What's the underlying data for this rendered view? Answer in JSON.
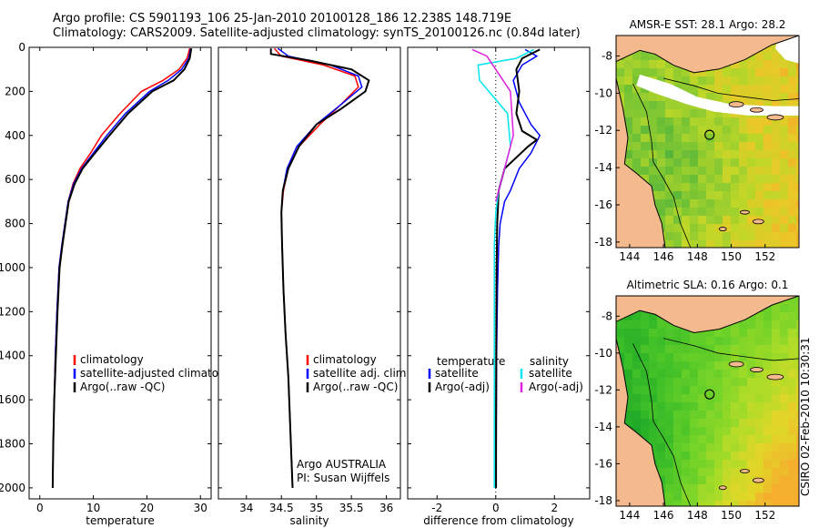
{
  "header": {
    "line1": "Argo profile: CS 5901193_106 25-Jan-2010 20100128_186 12.238S 148.719E",
    "line2": "Climatology: CARS2009. Satellite-adjusted climatology: synTS_20100126.nc (0.84d later)"
  },
  "stamp": "CSIRO 02-Feb-2010 10:30:31",
  "colors": {
    "climatology": "#ff0000",
    "satellite": "#0000ff",
    "argo": "#000000",
    "salinity_satellite": "#00e5ee",
    "salinity_argo": "#e020e0",
    "land": "#f4b98c"
  },
  "chart_data": [
    {
      "type": "line",
      "id": "temperature",
      "xlabel": "temperature",
      "xlim": [
        -2,
        32
      ],
      "ylim": [
        2050,
        0
      ],
      "xticks": [
        0,
        10,
        20,
        30
      ],
      "yticks": [
        0,
        200,
        400,
        600,
        800,
        1000,
        1200,
        1400,
        1600,
        1800,
        2000
      ],
      "legend": [
        "climatology",
        "satellite-adjusted climatology",
        "Argo(..raw -QC)"
      ],
      "series": [
        {
          "name": "climatology",
          "color": "#ff0000",
          "x": [
            28.0,
            27.5,
            26.0,
            23.0,
            19.0,
            15.0,
            11.5,
            9.5,
            7.5,
            6.2,
            5.3,
            4.7,
            4.1,
            3.6,
            3.2,
            2.9,
            2.7,
            2.5,
            2.4
          ],
          "y": [
            5,
            50,
            100,
            150,
            200,
            300,
            400,
            480,
            550,
            620,
            700,
            800,
            900,
            1000,
            1200,
            1400,
            1600,
            1800,
            2000
          ]
        },
        {
          "name": "satellite-adjusted climatology",
          "color": "#0000ff",
          "x": [
            28.2,
            27.8,
            26.5,
            24.0,
            20.5,
            16.0,
            12.5,
            10.0,
            7.8,
            6.3,
            5.3,
            4.7,
            4.1,
            3.6,
            3.2,
            2.9,
            2.7,
            2.5,
            2.4
          ],
          "y": [
            5,
            50,
            100,
            150,
            200,
            300,
            400,
            480,
            550,
            620,
            700,
            800,
            900,
            1000,
            1200,
            1400,
            1600,
            1800,
            2000
          ]
        },
        {
          "name": "Argo(..raw -QC)",
          "color": "#000000",
          "x": [
            28.3,
            28.0,
            27.0,
            25.0,
            21.0,
            16.5,
            13.0,
            10.3,
            8.0,
            6.5,
            5.4,
            4.8,
            4.2,
            3.7,
            3.3,
            3.0,
            2.7,
            2.5,
            2.4
          ],
          "y": [
            5,
            50,
            100,
            150,
            200,
            300,
            400,
            480,
            550,
            620,
            700,
            800,
            900,
            1000,
            1200,
            1400,
            1600,
            1800,
            2000
          ]
        }
      ]
    },
    {
      "type": "line",
      "id": "salinity",
      "xlabel": "salinity",
      "xlim": [
        33.6,
        36.2
      ],
      "ylim": [
        2050,
        0
      ],
      "xticks": [
        34,
        34.5,
        35,
        35.5,
        36
      ],
      "legend": [
        "climatology",
        "satellite adj. clim.",
        "Argo(..raw -QC)"
      ],
      "annotation": [
        "Argo AUSTRALIA",
        "PI: Susan Wijffels"
      ],
      "series": [
        {
          "name": "climatology",
          "color": "#ff0000",
          "x": [
            34.4,
            34.5,
            35.1,
            35.55,
            35.6,
            35.35,
            35.05,
            34.75,
            34.6,
            34.53,
            34.5,
            34.51,
            34.53,
            34.56,
            34.6,
            34.63,
            34.66
          ],
          "y": [
            5,
            40,
            80,
            130,
            180,
            260,
            350,
            450,
            550,
            650,
            750,
            900,
            1100,
            1300,
            1500,
            1750,
            2000
          ]
        },
        {
          "name": "satellite adj. clim.",
          "color": "#0000ff",
          "x": [
            34.45,
            34.6,
            35.2,
            35.6,
            35.65,
            35.35,
            35.0,
            34.72,
            34.58,
            34.52,
            34.5,
            34.51,
            34.53,
            34.56,
            34.6,
            34.63,
            34.66
          ],
          "y": [
            5,
            40,
            80,
            130,
            180,
            260,
            350,
            450,
            550,
            650,
            750,
            900,
            1100,
            1300,
            1500,
            1750,
            2000
          ]
        },
        {
          "name": "Argo(..raw -QC)",
          "color": "#000000",
          "x": [
            34.35,
            34.35,
            34.9,
            35.5,
            35.75,
            35.7,
            35.35,
            35.0,
            34.75,
            34.6,
            34.52,
            34.5,
            34.51,
            34.53,
            34.56,
            34.6,
            34.63,
            34.66
          ],
          "y": [
            5,
            30,
            60,
            100,
            150,
            200,
            280,
            350,
            450,
            550,
            650,
            750,
            900,
            1100,
            1300,
            1500,
            1750,
            2000
          ]
        }
      ]
    },
    {
      "type": "line",
      "id": "difference",
      "xlabel": "difference from climatology",
      "xlim": [
        -3,
        3.2
      ],
      "ylim": [
        2050,
        0
      ],
      "xticks": [
        -2,
        0,
        2
      ],
      "legend_left": {
        "title": "temperature",
        "items": [
          "satellite",
          "Argo(-adj)"
        ]
      },
      "legend_right": {
        "title": "salinity",
        "items": [
          "satellite",
          "Argo(-adj)"
        ]
      },
      "series": [
        {
          "name": "temperature satellite",
          "color": "#0000ff",
          "x": [
            1.0,
            1.4,
            0.9,
            0.6,
            0.8,
            1.2,
            1.5,
            1.2,
            0.8,
            0.5,
            0.3,
            0.15,
            0.1,
            0.06,
            0.03,
            0.02,
            0.01
          ],
          "y": [
            10,
            40,
            80,
            150,
            250,
            350,
            400,
            480,
            550,
            650,
            700,
            800,
            900,
            1100,
            1400,
            1700,
            2000
          ]
        },
        {
          "name": "temperature Argo(-adj)",
          "color": "#000000",
          "x": [
            1.5,
            0.9,
            0.7,
            0.8,
            0.7,
            0.9,
            1.4,
            1.1,
            0.3,
            0.1,
            0.05,
            0.03,
            0.02,
            0.01,
            0.01
          ],
          "y": [
            10,
            50,
            100,
            200,
            300,
            380,
            420,
            450,
            550,
            650,
            800,
            1000,
            1300,
            1700,
            2000
          ]
        },
        {
          "name": "salinity satellite",
          "color": "#00e5ee",
          "x": [
            1.3,
            0.7,
            -0.6,
            -0.55,
            0.4,
            0.5,
            0.3,
            0.1,
            0.0,
            -0.05,
            -0.05,
            -0.05,
            -0.05
          ],
          "y": [
            10,
            50,
            80,
            150,
            300,
            450,
            550,
            650,
            750,
            900,
            1200,
            1600,
            2000
          ]
        },
        {
          "name": "salinity Argo(-adj)",
          "color": "#e020e0",
          "x": [
            -0.8,
            -0.3,
            0.5,
            0.6,
            0.3,
            0.1,
            0.0
          ],
          "y": [
            10,
            40,
            200,
            400,
            550,
            650,
            700
          ]
        }
      ]
    }
  ],
  "maps": [
    {
      "title": "AMSR-E SST: 28.1 Argo: 28.2",
      "xticks": [
        144,
        146,
        148,
        150,
        152
      ],
      "yticks": [
        -8,
        -10,
        -12,
        -14,
        -16,
        -18
      ],
      "xlim": [
        143.2,
        154
      ],
      "ylim": [
        -18.3,
        -6.9
      ],
      "float_position": [
        148.719,
        -12.238
      ],
      "palette": "sst"
    },
    {
      "title": "Altimetric SLA: 0.16 Argo: 0.1",
      "xticks": [
        144,
        146,
        148,
        150,
        152
      ],
      "yticks": [
        -8,
        -10,
        -12,
        -14,
        -16,
        -18
      ],
      "xlim": [
        143.2,
        154
      ],
      "ylim": [
        -18.3,
        -6.9
      ],
      "float_position": [
        148.719,
        -12.238
      ],
      "palette": "sla"
    }
  ]
}
